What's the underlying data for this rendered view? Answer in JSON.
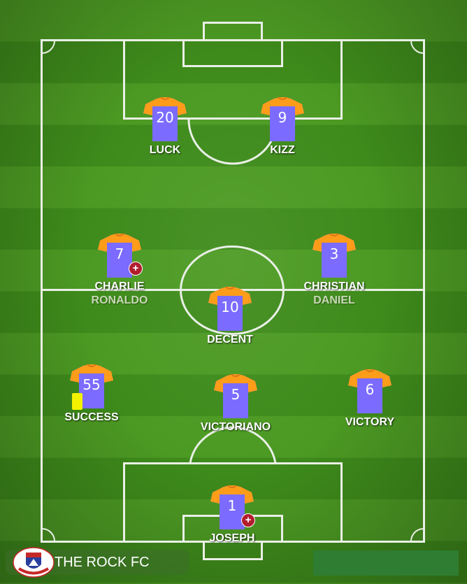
{
  "team": {
    "name": "THE ROCK FC",
    "logo_icon": "club-crest-icon"
  },
  "kit": {
    "body_color": "#7b6cff",
    "sleeve_color": "#ff9c1a",
    "number_color": "#ffffff"
  },
  "pitch": {
    "grass_light": "#4c9a23",
    "grass_dark": "#3e8b1b",
    "line_color": "#e9efe6"
  },
  "players": [
    {
      "id": "luck",
      "number": "20",
      "name": "LUCK",
      "sub": "",
      "injury": false,
      "yellow_card": false
    },
    {
      "id": "kizz",
      "number": "9",
      "name": "KIZZ",
      "sub": "",
      "injury": false,
      "yellow_card": false
    },
    {
      "id": "charlie",
      "number": "7",
      "name": "CHARLIE",
      "sub": "RONALDO",
      "injury": true,
      "yellow_card": false
    },
    {
      "id": "christian",
      "number": "3",
      "name": "CHRISTIAN",
      "sub": "DANIEL",
      "injury": false,
      "yellow_card": false
    },
    {
      "id": "decent",
      "number": "10",
      "name": "DECENT",
      "sub": "",
      "injury": false,
      "yellow_card": false
    },
    {
      "id": "success",
      "number": "55",
      "name": "SUCCESS",
      "sub": "",
      "injury": false,
      "yellow_card": true
    },
    {
      "id": "victoriano",
      "number": "5",
      "name": "VICTORIANO",
      "sub": "",
      "injury": false,
      "yellow_card": false
    },
    {
      "id": "victory",
      "number": "6",
      "name": "VICTORY",
      "sub": "",
      "injury": false,
      "yellow_card": false
    },
    {
      "id": "joseph",
      "number": "1",
      "name": "JOSEPH",
      "sub": "",
      "injury": true,
      "yellow_card": false
    }
  ],
  "icons": {
    "injury": "medical-cross-icon",
    "card": "yellow-card-icon"
  }
}
